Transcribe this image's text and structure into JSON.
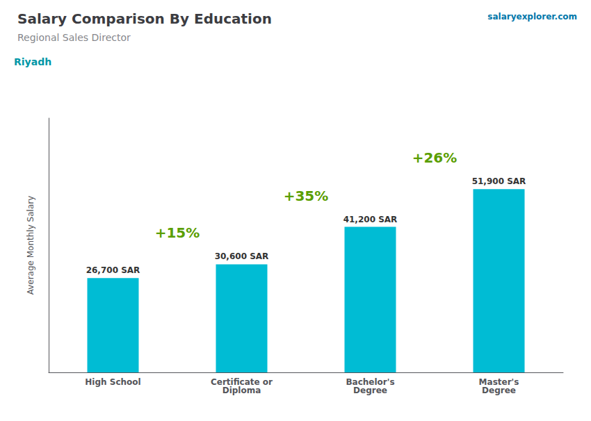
{
  "chart_data": {
    "type": "bar",
    "title": "Salary Comparison By Education",
    "subtitle": "Regional Sales Director",
    "y_label": "Average Monthly Salary",
    "categories": [
      "High School",
      "Certificate or\nDiploma",
      "Bachelor's\nDegree",
      "Master's\nDegree"
    ],
    "values": [
      26700,
      30600,
      41200,
      51900
    ],
    "value_labels": [
      "26,700 SAR",
      "30,600 SAR",
      "41,200 SAR",
      "51,900 SAR"
    ],
    "data_labels": true,
    "color": "#00bcd4",
    "ylim": [
      0,
      72000
    ],
    "grid": false,
    "tick_labels": "x",
    "annotations": [
      {
        "text": "Riyadh"
      },
      {
        "text": "salaryexplorer.com"
      },
      {
        "text": "+15%",
        "between": [
          0,
          1
        ]
      },
      {
        "text": "+35%",
        "between": [
          1,
          2
        ]
      },
      {
        "text": "+26%",
        "between": [
          2,
          3
        ]
      }
    ]
  }
}
